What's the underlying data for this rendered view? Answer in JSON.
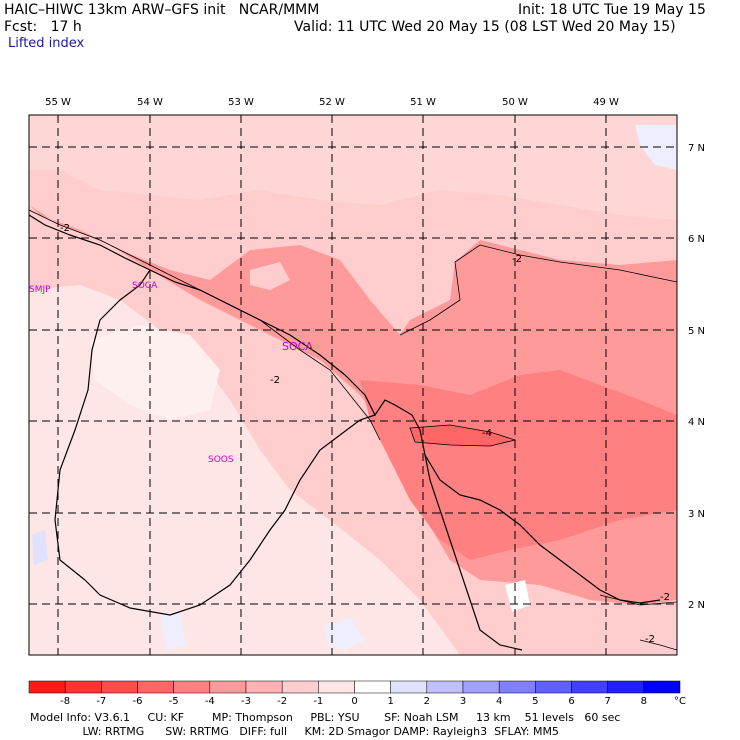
{
  "header": {
    "title": "HAIC–HIWC 13km ARW–GFS init   NCAR/MMM",
    "init": "Init: 18 UTC Tue 19 May 15",
    "fcst": "Fcst:   17 h",
    "valid": "Valid: 11 UTC Wed 20 May 15 (08 LST Wed 20 May 15)",
    "field": "Lifted index"
  },
  "map": {
    "lon_labels": [
      "55 W",
      "54 W",
      "53 W",
      "52 W",
      "51 W",
      "50 W",
      "49 W"
    ],
    "lat_labels": [
      "7 N",
      "6 N",
      "5 N",
      "4 N",
      "3 N",
      "2 N"
    ],
    "stations": [
      "SMJP",
      "SOCA",
      "SOCA",
      "SOOS"
    ],
    "contour_labels": [
      "-2",
      "-2",
      "-2",
      "-4",
      "-2",
      "-2"
    ]
  },
  "colorbar": {
    "ticks": [
      "-8",
      "-7",
      "-6",
      "-5",
      "-4",
      "-3",
      "-2",
      "-1",
      "0",
      "1",
      "2",
      "3",
      "4",
      "5",
      "6",
      "7",
      "8"
    ],
    "unit": "°C",
    "colors": [
      "#ff1a1a",
      "#ff3333",
      "#ff4d4d",
      "#ff6666",
      "#ff8080",
      "#ff9a9a",
      "#ffb3b3",
      "#ffcdcd",
      "#ffe6e6",
      "#ffffff",
      "#e0e0ff",
      "#c0c0ff",
      "#a0a0ff",
      "#8080ff",
      "#6060ff",
      "#4040ff",
      "#2020ff",
      "#0000ff"
    ]
  },
  "footer": {
    "line1": "Model Info: V3.6.1     CU: KF        MP: Thompson     PBL: YSU       SF: Noah LSM     13 km    51 levels   60 sec",
    "line2": "               LW: RRTMG      SW: RRTMG   DIFF: full     KM: 2D Smagor DAMP: Rayleigh3  SFLAY: MM5"
  }
}
